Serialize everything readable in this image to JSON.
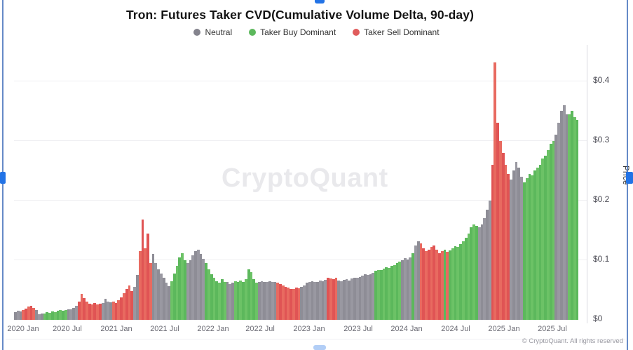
{
  "watermark": "CryptoQuant",
  "footer": {
    "copyright": "© CryptoQuant. All rights reserved"
  },
  "selection": {
    "handle_color": "#2273e6",
    "border_color": "#4a76bd"
  },
  "chart_data": {
    "type": "bar",
    "title": "Tron: Futures Taker CVD(Cumulative Volume Delta, 90-day)",
    "xlabel": "",
    "ylabel": "Price",
    "ylim": [
      0,
      0.455
    ],
    "grid": true,
    "legend_position": "top-center",
    "y_ticks": [
      {
        "label": "$0",
        "value": 0
      },
      {
        "label": "$0.1",
        "value": 0.1
      },
      {
        "label": "$0.2",
        "value": 0.2
      },
      {
        "label": "$0.3",
        "value": 0.3
      },
      {
        "label": "$0.4",
        "value": 0.4
      }
    ],
    "x_ticks": [
      {
        "label": "2020 Jan",
        "f": 0.0162
      },
      {
        "label": "2020 Jul",
        "f": 0.0945
      },
      {
        "label": "2021 Jan",
        "f": 0.1816
      },
      {
        "label": "2021 Jul",
        "f": 0.2674
      },
      {
        "label": "2022 Jan",
        "f": 0.3532
      },
      {
        "label": "2022 Jul",
        "f": 0.4366
      },
      {
        "label": "2023 Jan",
        "f": 0.5236
      },
      {
        "label": "2023 Jul",
        "f": 0.6107
      },
      {
        "label": "2024 Jan",
        "f": 0.6965
      },
      {
        "label": "2024 Jul",
        "f": 0.7836
      },
      {
        "label": "2025 Jan",
        "f": 0.8694
      },
      {
        "label": "2025 Jul",
        "f": 0.9552
      }
    ],
    "regimes": [
      {
        "code": 0,
        "name": "Neutral",
        "color": "#8e8d96",
        "color_alt": "#9998a1",
        "legend_dot": "#84838d"
      },
      {
        "code": 1,
        "name": "Taker Buy Dominant",
        "color": "#5cb85c",
        "color_alt": "#6cc266",
        "legend_dot": "#5cb85c"
      },
      {
        "code": 2,
        "name": "Taker Sell Dominant",
        "color": "#e05454",
        "color_alt": "#e86a60",
        "legend_dot": "#e05c5c"
      }
    ],
    "points_format": "[price_usd, regime_code] per ~10-day interval, Dec 2019 to Oct 2025",
    "points": [
      [
        0.013,
        0
      ],
      [
        0.015,
        0
      ],
      [
        0.014,
        0
      ],
      [
        0.016,
        2
      ],
      [
        0.019,
        2
      ],
      [
        0.022,
        2
      ],
      [
        0.024,
        2
      ],
      [
        0.02,
        2
      ],
      [
        0.016,
        0
      ],
      [
        0.009,
        0
      ],
      [
        0.011,
        0
      ],
      [
        0.011,
        1
      ],
      [
        0.013,
        1
      ],
      [
        0.012,
        1
      ],
      [
        0.014,
        1
      ],
      [
        0.013,
        1
      ],
      [
        0.015,
        1
      ],
      [
        0.016,
        1
      ],
      [
        0.015,
        1
      ],
      [
        0.017,
        1
      ],
      [
        0.018,
        0
      ],
      [
        0.018,
        0
      ],
      [
        0.02,
        0
      ],
      [
        0.024,
        0
      ],
      [
        0.03,
        2
      ],
      [
        0.044,
        2
      ],
      [
        0.036,
        2
      ],
      [
        0.03,
        2
      ],
      [
        0.027,
        2
      ],
      [
        0.026,
        2
      ],
      [
        0.028,
        2
      ],
      [
        0.026,
        2
      ],
      [
        0.027,
        2
      ],
      [
        0.028,
        0
      ],
      [
        0.035,
        0
      ],
      [
        0.03,
        0
      ],
      [
        0.029,
        0
      ],
      [
        0.03,
        2
      ],
      [
        0.028,
        2
      ],
      [
        0.033,
        2
      ],
      [
        0.038,
        2
      ],
      [
        0.045,
        2
      ],
      [
        0.052,
        2
      ],
      [
        0.058,
        2
      ],
      [
        0.048,
        2
      ],
      [
        0.055,
        0
      ],
      [
        0.075,
        0
      ],
      [
        0.115,
        2
      ],
      [
        0.168,
        2
      ],
      [
        0.12,
        2
      ],
      [
        0.145,
        2
      ],
      [
        0.095,
        2
      ],
      [
        0.11,
        0
      ],
      [
        0.095,
        0
      ],
      [
        0.085,
        0
      ],
      [
        0.078,
        0
      ],
      [
        0.07,
        0
      ],
      [
        0.062,
        0
      ],
      [
        0.057,
        0
      ],
      [
        0.065,
        1
      ],
      [
        0.078,
        1
      ],
      [
        0.09,
        1
      ],
      [
        0.105,
        1
      ],
      [
        0.112,
        1
      ],
      [
        0.1,
        1
      ],
      [
        0.095,
        0
      ],
      [
        0.1,
        0
      ],
      [
        0.108,
        0
      ],
      [
        0.115,
        0
      ],
      [
        0.118,
        0
      ],
      [
        0.11,
        0
      ],
      [
        0.102,
        0
      ],
      [
        0.095,
        1
      ],
      [
        0.085,
        1
      ],
      [
        0.077,
        1
      ],
      [
        0.07,
        1
      ],
      [
        0.065,
        1
      ],
      [
        0.062,
        1
      ],
      [
        0.068,
        1
      ],
      [
        0.064,
        1
      ],
      [
        0.063,
        0
      ],
      [
        0.06,
        0
      ],
      [
        0.062,
        0
      ],
      [
        0.065,
        1
      ],
      [
        0.063,
        1
      ],
      [
        0.066,
        1
      ],
      [
        0.064,
        1
      ],
      [
        0.068,
        1
      ],
      [
        0.085,
        1
      ],
      [
        0.08,
        1
      ],
      [
        0.068,
        1
      ],
      [
        0.062,
        1
      ],
      [
        0.063,
        0
      ],
      [
        0.065,
        0
      ],
      [
        0.064,
        0
      ],
      [
        0.063,
        0
      ],
      [
        0.065,
        0
      ],
      [
        0.064,
        0
      ],
      [
        0.063,
        0
      ],
      [
        0.062,
        2
      ],
      [
        0.06,
        2
      ],
      [
        0.058,
        2
      ],
      [
        0.055,
        2
      ],
      [
        0.054,
        2
      ],
      [
        0.052,
        2
      ],
      [
        0.052,
        2
      ],
      [
        0.054,
        2
      ],
      [
        0.053,
        2
      ],
      [
        0.055,
        0
      ],
      [
        0.058,
        0
      ],
      [
        0.062,
        0
      ],
      [
        0.063,
        0
      ],
      [
        0.065,
        0
      ],
      [
        0.064,
        0
      ],
      [
        0.063,
        0
      ],
      [
        0.066,
        0
      ],
      [
        0.065,
        0
      ],
      [
        0.067,
        0
      ],
      [
        0.07,
        2
      ],
      [
        0.069,
        2
      ],
      [
        0.068,
        2
      ],
      [
        0.07,
        2
      ],
      [
        0.066,
        0
      ],
      [
        0.065,
        0
      ],
      [
        0.067,
        0
      ],
      [
        0.068,
        0
      ],
      [
        0.066,
        0
      ],
      [
        0.069,
        0
      ],
      [
        0.071,
        0
      ],
      [
        0.07,
        0
      ],
      [
        0.072,
        0
      ],
      [
        0.074,
        0
      ],
      [
        0.076,
        0
      ],
      [
        0.075,
        0
      ],
      [
        0.077,
        0
      ],
      [
        0.079,
        0
      ],
      [
        0.082,
        1
      ],
      [
        0.084,
        1
      ],
      [
        0.083,
        1
      ],
      [
        0.086,
        1
      ],
      [
        0.088,
        1
      ],
      [
        0.087,
        1
      ],
      [
        0.09,
        1
      ],
      [
        0.092,
        1
      ],
      [
        0.095,
        1
      ],
      [
        0.098,
        1
      ],
      [
        0.1,
        0
      ],
      [
        0.103,
        0
      ],
      [
        0.101,
        0
      ],
      [
        0.105,
        0
      ],
      [
        0.112,
        1
      ],
      [
        0.125,
        0
      ],
      [
        0.132,
        0
      ],
      [
        0.128,
        2
      ],
      [
        0.12,
        2
      ],
      [
        0.115,
        2
      ],
      [
        0.118,
        2
      ],
      [
        0.122,
        2
      ],
      [
        0.125,
        2
      ],
      [
        0.118,
        2
      ],
      [
        0.112,
        2
      ],
      [
        0.115,
        2
      ],
      [
        0.118,
        1
      ],
      [
        0.114,
        2
      ],
      [
        0.116,
        1
      ],
      [
        0.12,
        1
      ],
      [
        0.124,
        1
      ],
      [
        0.122,
        1
      ],
      [
        0.127,
        1
      ],
      [
        0.132,
        1
      ],
      [
        0.138,
        1
      ],
      [
        0.145,
        1
      ],
      [
        0.155,
        1
      ],
      [
        0.16,
        1
      ],
      [
        0.158,
        1
      ],
      [
        0.155,
        0
      ],
      [
        0.16,
        0
      ],
      [
        0.17,
        0
      ],
      [
        0.185,
        0
      ],
      [
        0.2,
        0
      ],
      [
        0.26,
        2
      ],
      [
        0.432,
        2
      ],
      [
        0.33,
        2
      ],
      [
        0.3,
        2
      ],
      [
        0.28,
        2
      ],
      [
        0.26,
        2
      ],
      [
        0.245,
        2
      ],
      [
        0.235,
        0
      ],
      [
        0.25,
        0
      ],
      [
        0.265,
        0
      ],
      [
        0.255,
        0
      ],
      [
        0.24,
        0
      ],
      [
        0.23,
        1
      ],
      [
        0.238,
        1
      ],
      [
        0.245,
        1
      ],
      [
        0.242,
        1
      ],
      [
        0.25,
        1
      ],
      [
        0.255,
        1
      ],
      [
        0.26,
        1
      ],
      [
        0.27,
        1
      ],
      [
        0.275,
        1
      ],
      [
        0.285,
        1
      ],
      [
        0.295,
        1
      ],
      [
        0.3,
        1
      ],
      [
        0.31,
        0
      ],
      [
        0.33,
        0
      ],
      [
        0.35,
        0
      ],
      [
        0.36,
        0
      ],
      [
        0.345,
        0
      ],
      [
        0.345,
        1
      ],
      [
        0.35,
        1
      ],
      [
        0.34,
        1
      ],
      [
        0.335,
        1
      ]
    ]
  }
}
